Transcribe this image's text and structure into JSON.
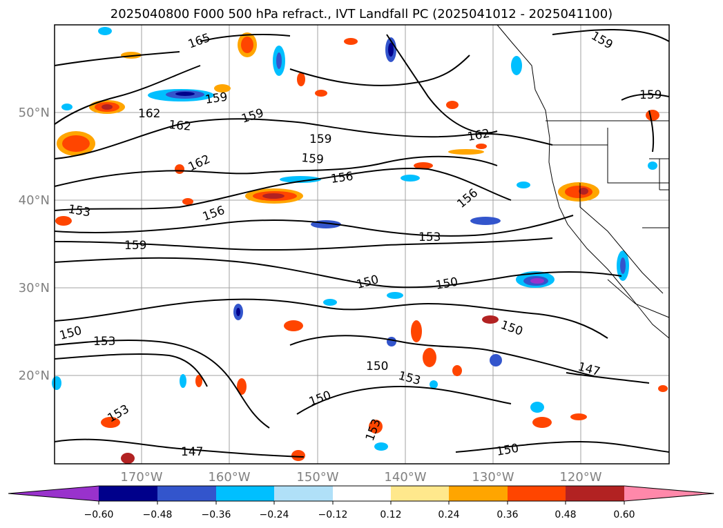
{
  "title": "2025040800 F000 500 hPa refract., IVT Landfall PC (2025041012 - 2025041100)",
  "latitude_labels": [
    "50°N",
    "40°N",
    "30°N",
    "20°N"
  ],
  "longitude_labels": [
    "170°W",
    "160°W",
    "150°W",
    "140°W",
    "130°W",
    "120°W"
  ],
  "contour_labels": [
    "165",
    "159",
    "162",
    "159",
    "162",
    "159",
    "159",
    "162",
    "162",
    "156",
    "153",
    "156",
    "156",
    "159",
    "153",
    "150",
    "150",
    "150",
    "147",
    "150",
    "153",
    "150",
    "150",
    "153",
    "147",
    "153",
    "153",
    "159",
    "159",
    "150"
  ],
  "colorbar": {
    "tick_labels": [
      "−0.60",
      "−0.48",
      "−0.36",
      "−0.24",
      "−0.12",
      "0.12",
      "0.24",
      "0.36",
      "0.48",
      "0.60"
    ],
    "colors": [
      "#9932cc",
      "#00008b",
      "#3355cc",
      "#00bfff",
      "#b0e0f8",
      "#ffffff",
      "#ffe88c",
      "#ffa500",
      "#ff4500",
      "#b22222",
      "#ff88aa"
    ]
  },
  "colors": {
    "contour": "#000000",
    "grid": "#a0a0a0",
    "axis_label": "#808080"
  }
}
